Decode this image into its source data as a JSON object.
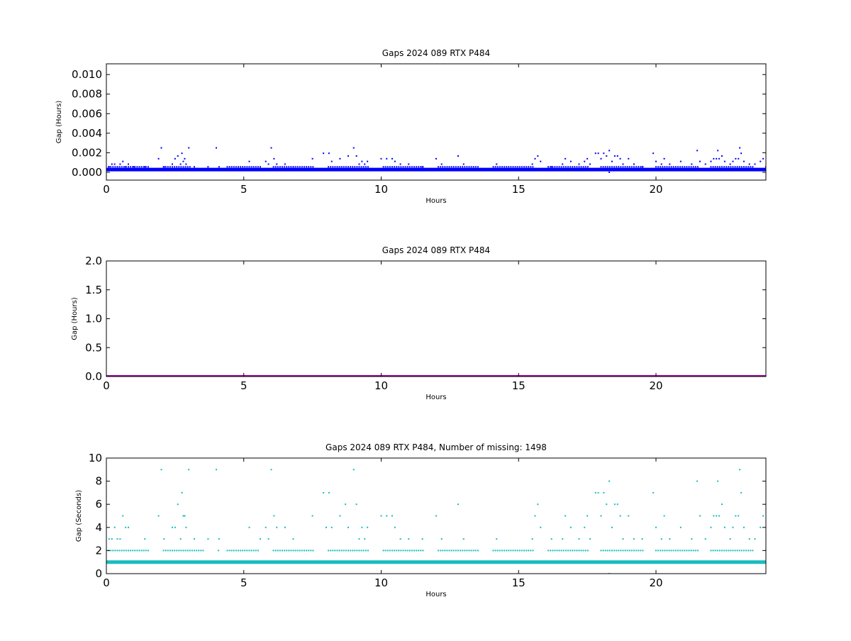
{
  "chart_data": [
    {
      "type": "scatter",
      "title": "Gaps 2024 089 RTX  P484",
      "xlabel": "Hours",
      "ylabel": "Gap (Hours)",
      "xlim": [
        0,
        24
      ],
      "ylim": [
        -0.0008,
        0.0111
      ],
      "xticks": [
        0,
        5,
        10,
        15,
        20
      ],
      "xtick_labels": [
        "0",
        "5",
        "10",
        "15",
        "20"
      ],
      "yticks": [
        0.0,
        0.002,
        0.004,
        0.006,
        0.008,
        0.01
      ],
      "ytick_labels": [
        "0.000",
        "0.002",
        "0.004",
        "0.006",
        "0.008",
        "0.010"
      ],
      "grid": false,
      "color": "#0000ff",
      "series": [
        {
          "baseline_y": 0.000278,
          "points": [
            [
              0.1,
              0.000556
            ],
            [
              0.2,
              0.000833
            ],
            [
              0.3,
              0.000833
            ],
            [
              0.4,
              0.000556
            ],
            [
              0.5,
              0.000833
            ],
            [
              0.6,
              0.001111
            ],
            [
              0.7,
              0.000556
            ],
            [
              0.8,
              0.000833
            ],
            [
              1.0,
              0.000556
            ],
            [
              1.4,
              0.000556
            ],
            [
              1.9,
              0.001389
            ],
            [
              2.0,
              0.0025
            ],
            [
              2.1,
              0.000556
            ],
            [
              2.4,
              0.000833
            ],
            [
              2.5,
              0.001389
            ],
            [
              2.6,
              0.001667
            ],
            [
              2.7,
              0.000833
            ],
            [
              2.75,
              0.001944
            ],
            [
              2.8,
              0.001111
            ],
            [
              2.85,
              0.001389
            ],
            [
              2.9,
              0.000833
            ],
            [
              3.0,
              0.0025
            ],
            [
              3.2,
              0.000556
            ],
            [
              3.7,
              0.000556
            ],
            [
              4.0,
              0.0025
            ],
            [
              4.1,
              0.000556
            ],
            [
              5.2,
              0.001111
            ],
            [
              5.6,
              0.000556
            ],
            [
              5.8,
              0.001111
            ],
            [
              5.9,
              0.000833
            ],
            [
              6.0,
              0.0025
            ],
            [
              6.1,
              0.001389
            ],
            [
              6.2,
              0.000833
            ],
            [
              6.5,
              0.000833
            ],
            [
              6.8,
              0.000556
            ],
            [
              7.5,
              0.001389
            ],
            [
              7.9,
              0.001944
            ],
            [
              8.1,
              0.001944
            ],
            [
              8.2,
              0.001111
            ],
            [
              8.5,
              0.001389
            ],
            [
              8.8,
              0.001667
            ],
            [
              9.0,
              0.0025
            ],
            [
              9.1,
              0.001667
            ],
            [
              9.2,
              0.000833
            ],
            [
              9.3,
              0.001111
            ],
            [
              9.4,
              0.000833
            ],
            [
              9.5,
              0.001111
            ],
            [
              10.0,
              0.001389
            ],
            [
              10.2,
              0.001389
            ],
            [
              10.4,
              0.001389
            ],
            [
              10.5,
              0.001111
            ],
            [
              10.7,
              0.000833
            ],
            [
              11.0,
              0.000833
            ],
            [
              11.5,
              0.000556
            ],
            [
              12.0,
              0.001389
            ],
            [
              12.2,
              0.000833
            ],
            [
              12.8,
              0.001667
            ],
            [
              13.0,
              0.000833
            ],
            [
              14.2,
              0.000833
            ],
            [
              15.5,
              0.000833
            ],
            [
              15.6,
              0.001389
            ],
            [
              15.7,
              0.001667
            ],
            [
              15.8,
              0.001111
            ],
            [
              16.2,
              0.000556
            ],
            [
              16.6,
              0.000833
            ],
            [
              16.7,
              0.001389
            ],
            [
              16.9,
              0.001111
            ],
            [
              17.2,
              0.000833
            ],
            [
              17.4,
              0.001111
            ],
            [
              17.5,
              0.001389
            ],
            [
              17.6,
              0.000833
            ],
            [
              17.8,
              0.001944
            ],
            [
              17.9,
              0.001944
            ],
            [
              18.0,
              0.001389
            ],
            [
              18.1,
              0.001944
            ],
            [
              18.2,
              0.001667
            ],
            [
              18.3,
              0.002222
            ],
            [
              18.3,
              0.0
            ],
            [
              18.4,
              0.001111
            ],
            [
              18.5,
              0.001667
            ],
            [
              18.6,
              0.001667
            ],
            [
              18.7,
              0.001389
            ],
            [
              18.8,
              0.000833
            ],
            [
              19.0,
              0.001389
            ],
            [
              19.2,
              0.000833
            ],
            [
              19.5,
              0.000556
            ],
            [
              19.9,
              0.001944
            ],
            [
              20.0,
              0.001111
            ],
            [
              20.2,
              0.000833
            ],
            [
              20.3,
              0.001389
            ],
            [
              20.5,
              0.000833
            ],
            [
              20.9,
              0.001111
            ],
            [
              21.3,
              0.000833
            ],
            [
              21.5,
              0.002222
            ],
            [
              21.5,
              -0.000833
            ],
            [
              21.6,
              0.001111
            ],
            [
              21.8,
              0.000833
            ],
            [
              22.0,
              0.001111
            ],
            [
              22.1,
              0.001389
            ],
            [
              22.2,
              0.001389
            ],
            [
              22.25,
              0.002222
            ],
            [
              22.3,
              0.001389
            ],
            [
              22.4,
              0.001667
            ],
            [
              22.5,
              0.001111
            ],
            [
              22.7,
              0.000833
            ],
            [
              22.8,
              0.001111
            ],
            [
              22.9,
              0.001389
            ],
            [
              23.0,
              0.001389
            ],
            [
              23.05,
              0.0025
            ],
            [
              23.1,
              0.001944
            ],
            [
              23.2,
              0.001111
            ],
            [
              23.4,
              0.000833
            ],
            [
              23.6,
              0.000833
            ],
            [
              23.8,
              0.001111
            ],
            [
              23.9,
              0.001389
            ]
          ]
        }
      ]
    },
    {
      "type": "scatter",
      "title": "Gaps 2024 089 RTX  P484",
      "xlabel": "Hours",
      "ylabel": "Gap (Hours)",
      "xlim": [
        0,
        24
      ],
      "ylim": [
        0,
        2
      ],
      "xticks": [
        0,
        5,
        10,
        15,
        20
      ],
      "xtick_labels": [
        "0",
        "5",
        "10",
        "15",
        "20"
      ],
      "yticks": [
        0.0,
        0.5,
        1.0,
        1.5,
        2.0
      ],
      "ytick_labels": [
        "0.0",
        "0.5",
        "1.0",
        "1.5",
        "2.0"
      ],
      "grid": false,
      "color": "#aa00aa",
      "series": [
        {
          "baseline_y": 0.0,
          "points": []
        }
      ]
    },
    {
      "type": "scatter",
      "title": "Gaps 2024 089 RTX  P484, Number of missing: 1498",
      "xlabel": "Hours",
      "ylabel": "Gap (Seconds)",
      "xlim": [
        0,
        24
      ],
      "ylim": [
        0,
        10
      ],
      "xticks": [
        0,
        5,
        10,
        15,
        20
      ],
      "xtick_labels": [
        "0",
        "5",
        "10",
        "15",
        "20"
      ],
      "yticks": [
        0,
        2,
        4,
        6,
        8,
        10
      ],
      "ytick_labels": [
        "0",
        "2",
        "4",
        "6",
        "8",
        "10"
      ],
      "grid": false,
      "color": "#17bcbf",
      "series": [
        {
          "baseline_y": 1,
          "points": [
            [
              0.1,
              3
            ],
            [
              0.2,
              3
            ],
            [
              0.3,
              4
            ],
            [
              0.4,
              3
            ],
            [
              0.5,
              3
            ],
            [
              0.6,
              5
            ],
            [
              0.7,
              4
            ],
            [
              0.8,
              4
            ],
            [
              1.4,
              3
            ],
            [
              1.9,
              5
            ],
            [
              2.0,
              9
            ],
            [
              2.1,
              3
            ],
            [
              2.4,
              4
            ],
            [
              2.5,
              4
            ],
            [
              2.6,
              6
            ],
            [
              2.7,
              3
            ],
            [
              2.75,
              7
            ],
            [
              2.8,
              5
            ],
            [
              2.85,
              5
            ],
            [
              2.9,
              4
            ],
            [
              3.0,
              9
            ],
            [
              3.2,
              3
            ],
            [
              3.7,
              3
            ],
            [
              4.0,
              9
            ],
            [
              4.1,
              3
            ],
            [
              5.2,
              4
            ],
            [
              5.6,
              3
            ],
            [
              5.8,
              4
            ],
            [
              5.9,
              3
            ],
            [
              6.0,
              9
            ],
            [
              6.1,
              5
            ],
            [
              6.2,
              4
            ],
            [
              6.5,
              4
            ],
            [
              6.8,
              3
            ],
            [
              7.5,
              5
            ],
            [
              7.9,
              7
            ],
            [
              8.0,
              4
            ],
            [
              8.1,
              7
            ],
            [
              8.2,
              4
            ],
            [
              8.5,
              5
            ],
            [
              8.7,
              6
            ],
            [
              8.8,
              4
            ],
            [
              9.0,
              9
            ],
            [
              9.1,
              6
            ],
            [
              9.2,
              3
            ],
            [
              9.3,
              4
            ],
            [
              9.4,
              3
            ],
            [
              9.5,
              4
            ],
            [
              10.0,
              5
            ],
            [
              10.2,
              5
            ],
            [
              10.4,
              5
            ],
            [
              10.5,
              4
            ],
            [
              10.7,
              3
            ],
            [
              11.0,
              3
            ],
            [
              11.5,
              3
            ],
            [
              12.0,
              5
            ],
            [
              12.2,
              3
            ],
            [
              12.8,
              6
            ],
            [
              13.0,
              3
            ],
            [
              14.2,
              3
            ],
            [
              15.5,
              3
            ],
            [
              15.6,
              5
            ],
            [
              15.7,
              6
            ],
            [
              15.8,
              4
            ],
            [
              16.2,
              3
            ],
            [
              16.6,
              3
            ],
            [
              16.7,
              5
            ],
            [
              16.9,
              4
            ],
            [
              17.2,
              3
            ],
            [
              17.4,
              4
            ],
            [
              17.5,
              5
            ],
            [
              17.6,
              3
            ],
            [
              17.8,
              7
            ],
            [
              17.9,
              7
            ],
            [
              18.0,
              5
            ],
            [
              18.1,
              7
            ],
            [
              18.2,
              6
            ],
            [
              18.3,
              8
            ],
            [
              18.3,
              0
            ],
            [
              18.4,
              4
            ],
            [
              18.5,
              6
            ],
            [
              18.6,
              6
            ],
            [
              18.7,
              5
            ],
            [
              18.8,
              3
            ],
            [
              19.0,
              5
            ],
            [
              19.2,
              3
            ],
            [
              19.5,
              3
            ],
            [
              19.9,
              7
            ],
            [
              20.0,
              4
            ],
            [
              20.2,
              3
            ],
            [
              20.3,
              5
            ],
            [
              20.5,
              3
            ],
            [
              20.9,
              4
            ],
            [
              21.3,
              3
            ],
            [
              21.5,
              8
            ],
            [
              21.6,
              5
            ],
            [
              21.8,
              3
            ],
            [
              22.0,
              4
            ],
            [
              22.1,
              5
            ],
            [
              22.2,
              5
            ],
            [
              22.25,
              8
            ],
            [
              22.3,
              5
            ],
            [
              22.4,
              6
            ],
            [
              22.5,
              4
            ],
            [
              22.7,
              3
            ],
            [
              22.8,
              4
            ],
            [
              22.9,
              5
            ],
            [
              23.0,
              5
            ],
            [
              23.05,
              9
            ],
            [
              23.1,
              7
            ],
            [
              23.2,
              4
            ],
            [
              23.4,
              3
            ],
            [
              23.6,
              3
            ],
            [
              23.8,
              4
            ],
            [
              23.9,
              5
            ]
          ]
        }
      ]
    }
  ]
}
